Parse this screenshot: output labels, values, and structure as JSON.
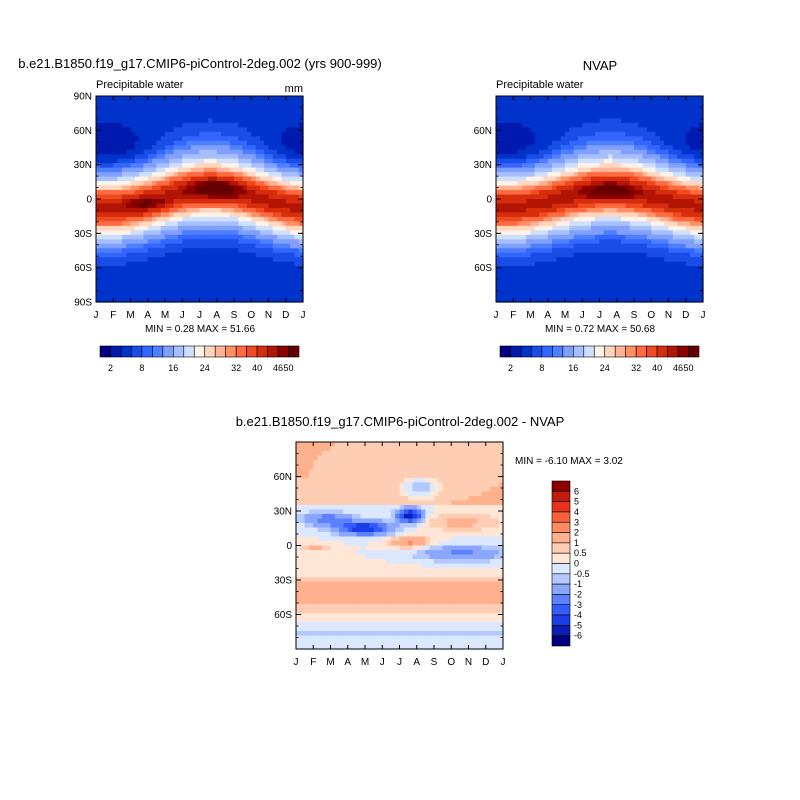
{
  "chart_data": [
    {
      "type": "heatmap",
      "title": "b.e21.B1850.f19_g17.CMIP6-piControl-2deg.002 (yrs 900-999)",
      "left_label": "Precipitable water",
      "right_label": "mm",
      "x_ticks": [
        "J",
        "F",
        "M",
        "A",
        "M",
        "J",
        "J",
        "A",
        "S",
        "O",
        "N",
        "D",
        "J"
      ],
      "y_ticks": [
        "90N",
        "60N",
        "30N",
        "0",
        "30S",
        "60S",
        "90S"
      ],
      "min_max_label": "MIN =   0.28 MAX =   51.66",
      "levels": [
        2,
        4,
        6,
        8,
        10,
        12,
        16,
        20,
        24,
        28,
        32,
        34,
        36,
        40,
        42,
        46,
        48,
        50
      ],
      "colorbar_labels": [
        "2",
        "8",
        "16",
        "24",
        "32",
        "40",
        "46",
        "50"
      ],
      "colors": [
        "#00007f",
        "#001ab0",
        "#0033cc",
        "#1a4de6",
        "#3366ff",
        "#4d7fff",
        "#809fff",
        "#a6c0ff",
        "#cfe0ff",
        "#fff2e6",
        "#ffd6c0",
        "#ffb396",
        "#ff9066",
        "#ff6b40",
        "#f04a20",
        "#d62d0d",
        "#b31505",
        "#8c0000",
        "#660000"
      ],
      "field": "model"
    },
    {
      "type": "heatmap",
      "title": "NVAP",
      "left_label": "Precipitable water",
      "right_label": "",
      "x_ticks": [
        "J",
        "F",
        "M",
        "A",
        "M",
        "J",
        "J",
        "A",
        "S",
        "O",
        "N",
        "D",
        "J"
      ],
      "y_ticks": [
        "",
        "60N",
        "30N",
        "0",
        "30S",
        "60S",
        ""
      ],
      "min_max_label": "MIN =   0.72 MAX =   50.68",
      "levels": [
        2,
        4,
        6,
        8,
        10,
        12,
        16,
        20,
        24,
        28,
        32,
        34,
        36,
        40,
        42,
        46,
        48,
        50
      ],
      "colorbar_labels": [
        "2",
        "8",
        "16",
        "24",
        "32",
        "40",
        "46",
        "50"
      ],
      "field": "obs"
    },
    {
      "type": "heatmap",
      "title": "b.e21.B1850.f19_g17.CMIP6-piControl-2deg.002 - NVAP",
      "x_ticks": [
        "J",
        "F",
        "M",
        "A",
        "M",
        "J",
        "J",
        "A",
        "S",
        "O",
        "N",
        "D",
        "J"
      ],
      "y_ticks": [
        "",
        "60N",
        "30N",
        "0",
        "30S",
        "60S",
        ""
      ],
      "min_max_label": "MIN =  -6.10 MAX =   3.02",
      "levels": [
        -6,
        -5,
        -4,
        -3,
        -2,
        -1,
        -0.5,
        0,
        0.5,
        1,
        2,
        3,
        4,
        5,
        6
      ],
      "colorbar_labels": [
        "6",
        "5",
        "4",
        "3",
        "2",
        "1",
        "0.5",
        "0",
        "-0.5",
        "-1",
        "-2",
        "-3",
        "-4",
        "-5",
        "-6"
      ],
      "colors": [
        "#00007f",
        "#0a1fb3",
        "#1a3ee6",
        "#335cff",
        "#5c80ff",
        "#8aa6ff",
        "#b3c8ff",
        "#dce8ff",
        "#ffe6d6",
        "#ffcdb3",
        "#ffb08c",
        "#ff8c60",
        "#f9603a",
        "#e6331a",
        "#c41a0a",
        "#8c0000"
      ],
      "field": "diff"
    }
  ]
}
